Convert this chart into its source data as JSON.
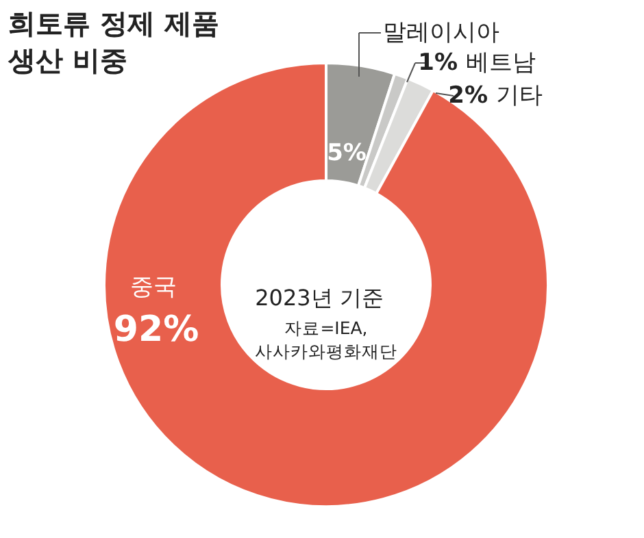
{
  "chart_data": {
    "type": "donut",
    "title": "희토류 정제 제품 생산 비중",
    "categories": [
      "말레이시아",
      "베트남",
      "기타",
      "중국"
    ],
    "values": [
      5,
      1,
      2,
      92
    ],
    "colors": [
      "#9b9b97",
      "#c9c9c7",
      "#dcdcda",
      "#e8604c"
    ],
    "value_labels": [
      "5%",
      "1%",
      "2%",
      "92%"
    ],
    "annotations": [
      "2023년 기준",
      "자료=IEA, 사사카와평화재단"
    ]
  }
}
